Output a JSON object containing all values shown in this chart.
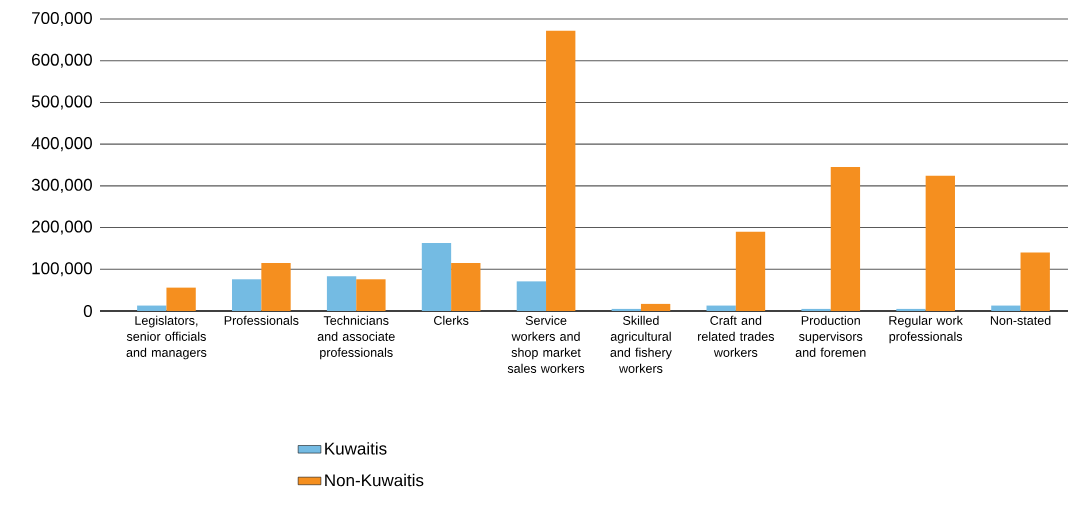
{
  "chart_data": {
    "type": "bar",
    "categories": [
      "Legislators, senior officials and managers",
      "Professionals",
      "Technicians and associate professionals",
      "Clerks",
      "Service workers and shop market sales workers",
      "Skilled agricultural and fishery workers",
      "Craft and related trades workers",
      "Production supervisors and foremen",
      "Regular work professionals",
      "Non-stated"
    ],
    "series": [
      {
        "name": "Kuwaitis",
        "color": "#74bbe3",
        "values": [
          13000,
          76000,
          83000,
          163000,
          71000,
          5000,
          13000,
          5000,
          5000,
          13000
        ]
      },
      {
        "name": "Non-Kuwaitis",
        "color": "#f58f1f",
        "values": [
          56000,
          115000,
          76000,
          115000,
          672000,
          17000,
          190000,
          345000,
          324000,
          140000
        ]
      }
    ],
    "ylim": [
      0,
      700000
    ],
    "yticks": [
      0,
      {
        "value": 100000,
        "label": "100,000"
      },
      {
        "value": 200000,
        "label": "200,000"
      },
      {
        "value": 300000,
        "label": "300,000"
      },
      {
        "value": 400000,
        "label": "400,000"
      },
      {
        "value": 500000,
        "label": "500,000"
      },
      {
        "value": 600000,
        "label": "600,000"
      },
      {
        "value": 700000,
        "label": "700,000"
      }
    ],
    "grid": "y",
    "legend": "bottom"
  }
}
